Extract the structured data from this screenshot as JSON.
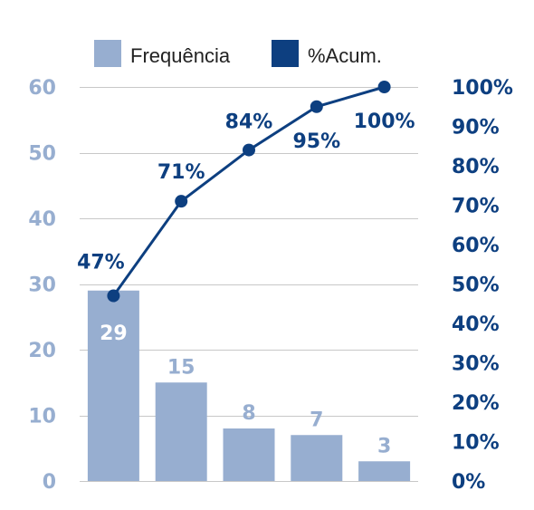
{
  "colors": {
    "bar": "#97aed0",
    "line": "#0d3f80",
    "left_axis_text": "#97aed0",
    "right_axis_text": "#0d3f80",
    "bar_label_inside": "#ffffff",
    "grid": "#c8c8c8",
    "legend_text": "#222222"
  },
  "chart_data": {
    "type": "bar",
    "categories": [
      "",
      "",
      "",
      "",
      ""
    ],
    "series": [
      {
        "name": "Frequência",
        "type": "bar",
        "axis": "left",
        "values": [
          29,
          15,
          8,
          7,
          3
        ]
      },
      {
        "name": "%Acum.",
        "type": "line",
        "axis": "right",
        "values": [
          47,
          71,
          84,
          95,
          100
        ]
      }
    ],
    "bar_labels": [
      "29",
      "15",
      "8",
      "7",
      "3"
    ],
    "line_labels": [
      "47%",
      "71%",
      "84%",
      "95%",
      "100%"
    ],
    "ylim": [
      0,
      60
    ],
    "y_ticks": [
      "0",
      "10",
      "20",
      "30",
      "40",
      "50",
      "60"
    ],
    "y2lim": [
      0,
      100
    ],
    "y2_ticks": [
      "0%",
      "10%",
      "20%",
      "30%",
      "40%",
      "50%",
      "60%",
      "70%",
      "80%",
      "90%",
      "100%"
    ],
    "legend": {
      "position": "top",
      "items": [
        {
          "label": "Frequência",
          "swatch": "bar"
        },
        {
          "label": "%Acum.",
          "swatch": "line"
        }
      ]
    },
    "grid": true
  }
}
